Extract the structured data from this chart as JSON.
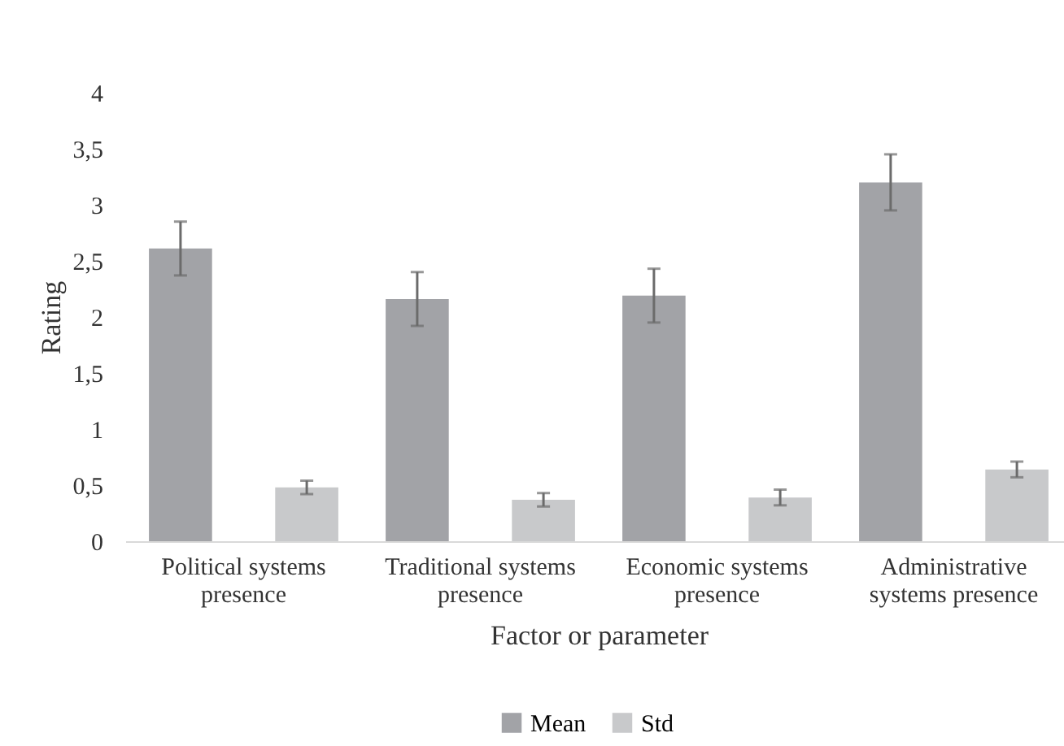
{
  "chart_data": {
    "type": "bar",
    "xlabel": "Factor or parameter",
    "ylabel": "Rating",
    "categories": [
      "Political systems presence",
      "Traditional systems presence",
      "Economic systems presence",
      "Administrative systems presence"
    ],
    "series": [
      {
        "name": "Mean",
        "color": "#a2a3a7",
        "values": [
          2.61,
          2.16,
          2.19,
          3.2
        ],
        "errors": [
          0.24,
          0.24,
          0.24,
          0.25
        ]
      },
      {
        "name": "Std",
        "color": "#c8c9cb",
        "values": [
          0.48,
          0.37,
          0.39,
          0.64
        ],
        "errors": [
          0.06,
          0.06,
          0.07,
          0.07
        ]
      }
    ],
    "ylim": [
      0,
      4
    ],
    "yticks": [
      0,
      {
        "value": 0.5,
        "label": "0,5"
      },
      1,
      {
        "value": 1.5,
        "label": "1,5"
      },
      2,
      {
        "value": 2.5,
        "label": "2,5"
      },
      3,
      {
        "value": 3.5,
        "label": "3,5"
      },
      4
    ],
    "grid": false,
    "legend": "bottom"
  }
}
